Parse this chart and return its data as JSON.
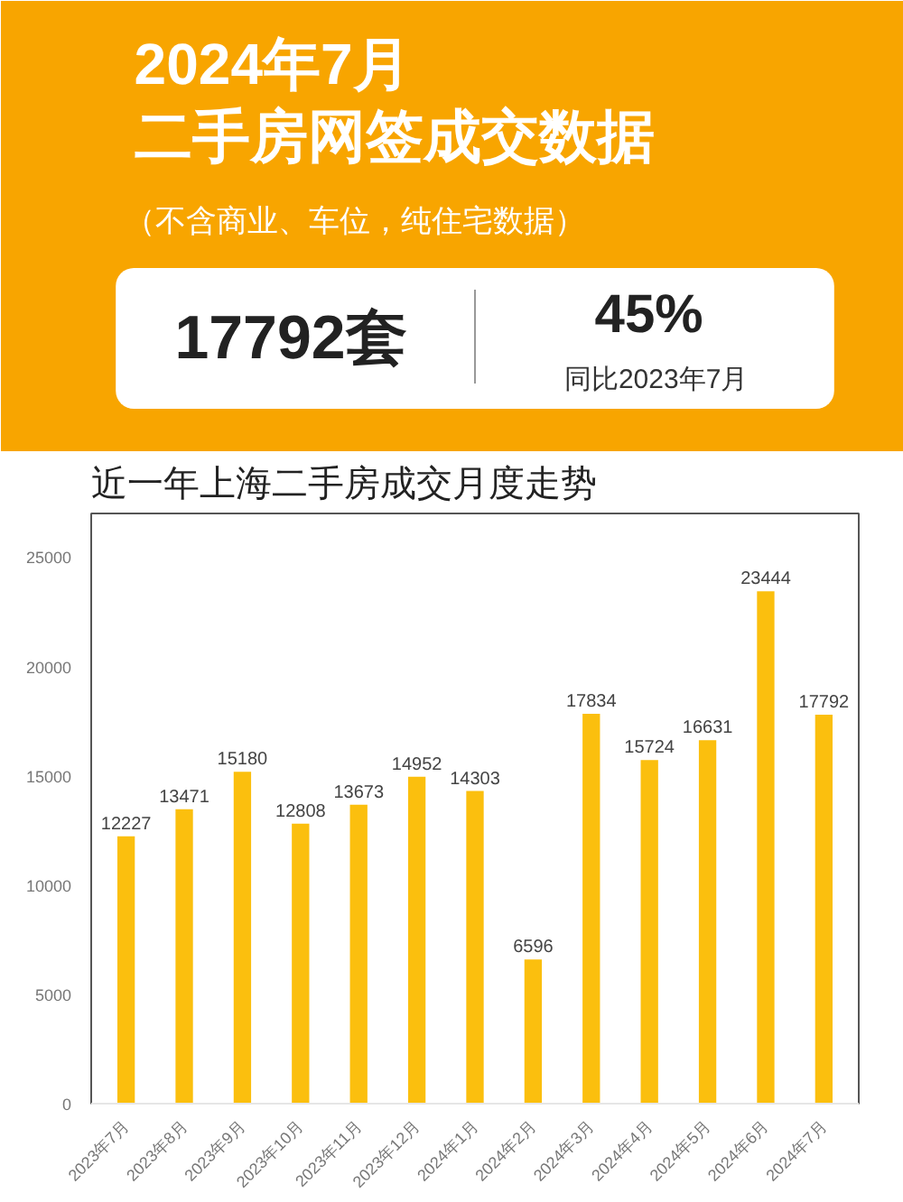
{
  "chart_data": {
    "type": "bar",
    "title": "2024年7月",
    "subtitle": "（不含商业、车位，纯住宅数据）",
    "annotations": [
      "二手房网签成交数据",
      "17792套",
      "45%",
      "同比2023年7月",
      "近一年上海二手房成交月度走势"
    ],
    "categories": [
      "2023年7月",
      "2023年8月",
      "2023年9月",
      "2023年10月",
      "2023年11月",
      "2023年12月",
      "2024年1月",
      "2024年2月",
      "2024年3月",
      "2024年4月",
      "2024年5月",
      "2024年6月",
      "2024年7月"
    ],
    "values": [
      12227,
      13471,
      15180,
      12808,
      13673,
      14952,
      14303,
      6596,
      17834,
      15724,
      16631,
      23444,
      17792
    ],
    "color": "#fbbf0e",
    "ylim": [
      0,
      27000
    ],
    "yticks": [
      0,
      5000,
      10000,
      15000,
      20000,
      25000
    ],
    "grid": false,
    "data_labels": true
  }
}
